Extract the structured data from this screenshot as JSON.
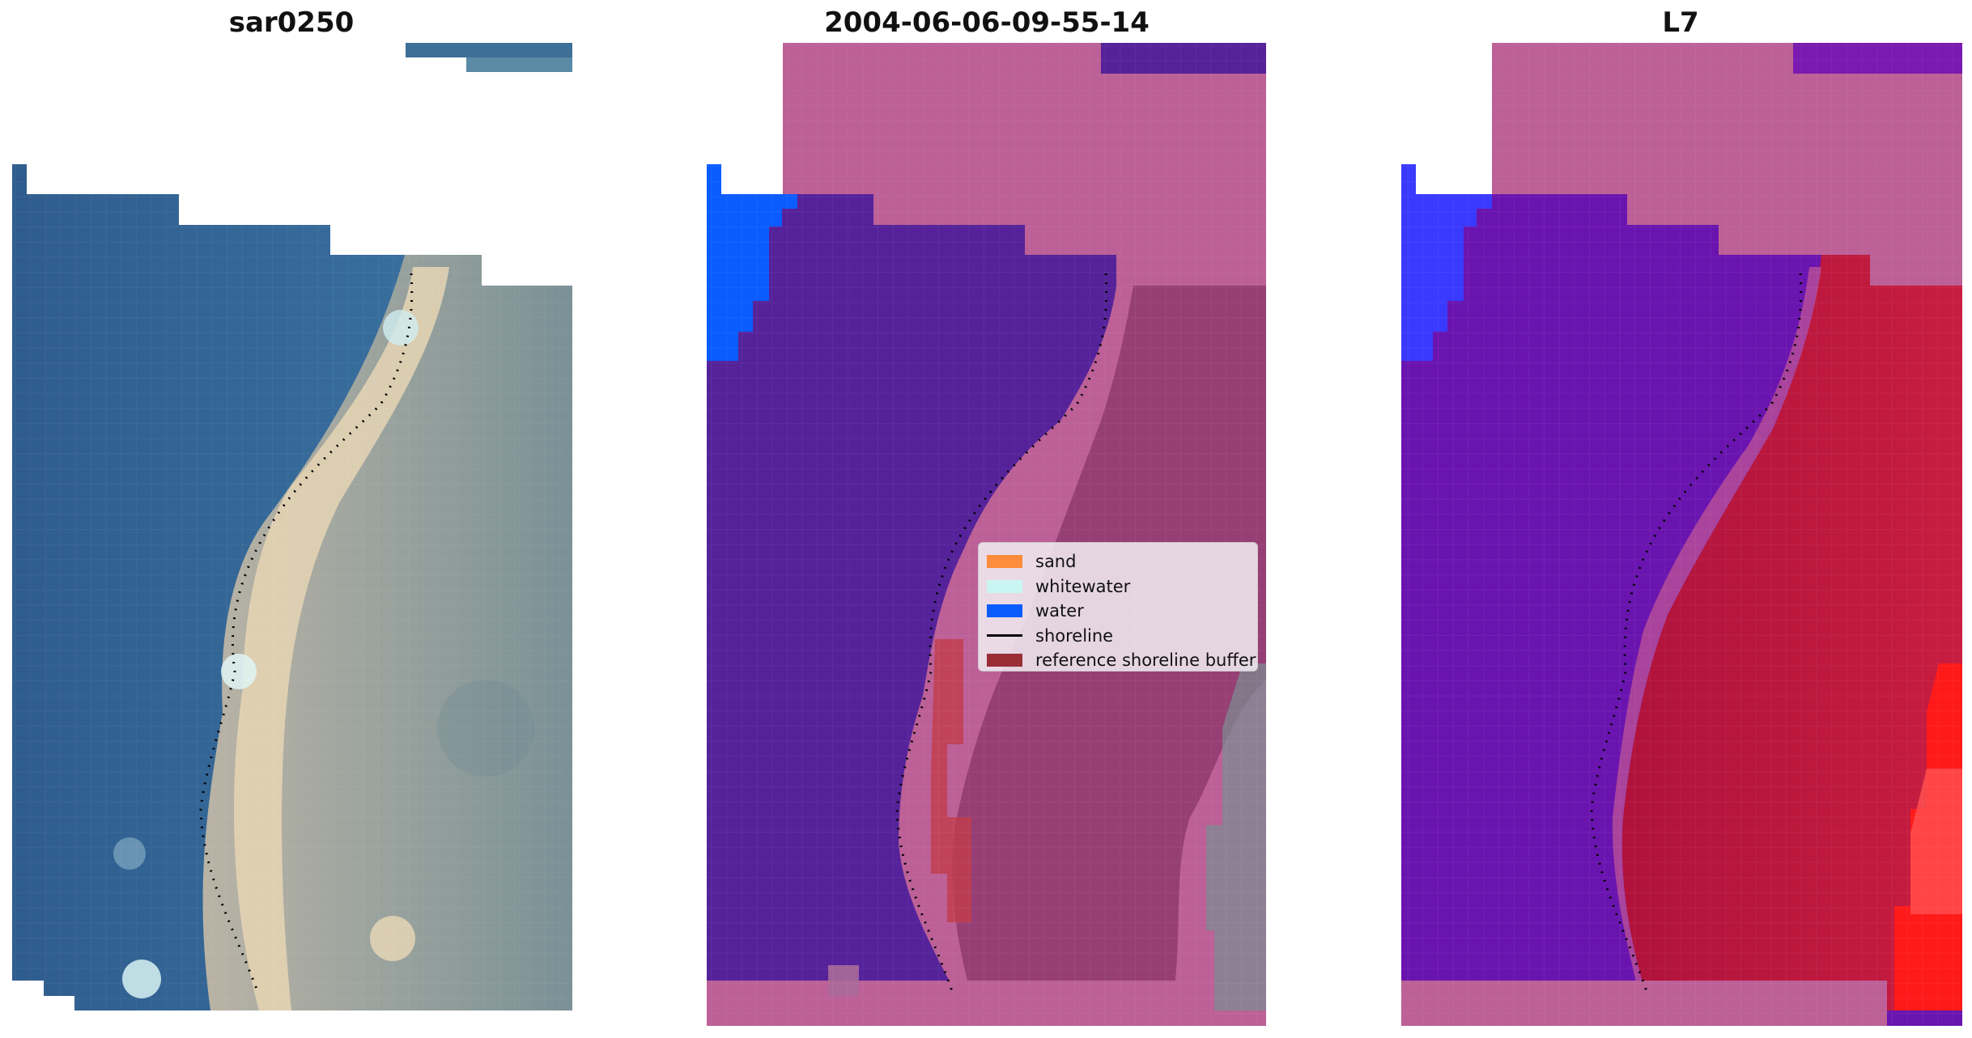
{
  "panels": [
    {
      "title": "sar0250"
    },
    {
      "title": "2004-06-06-09-55-14"
    },
    {
      "title": "L7"
    }
  ],
  "legend": {
    "items": [
      {
        "label": "sand",
        "color": "#ff8c3a",
        "kind": "patch"
      },
      {
        "label": "whitewater",
        "color": "#c9f5f3",
        "kind": "patch"
      },
      {
        "label": "water",
        "color": "#0b5cff",
        "kind": "patch"
      },
      {
        "label": "shoreline",
        "color": "#000000",
        "kind": "line"
      },
      {
        "label": "reference shoreline buffer",
        "color": "#9a2e36",
        "kind": "patch"
      }
    ]
  },
  "colors": {
    "water_rgb": "#3a6a96",
    "beach_rgb": "#e8d8b8",
    "land_rgb": "#7f9298",
    "class_water": "#55229a",
    "class_land": "#bc6097",
    "class_land_dark": "#8a3468",
    "ndwi_low": "#6a14b0",
    "ndwi_high": "#c8143c",
    "ndwi_extreme": "#ff1a1a",
    "blue_region": "#0b5cff"
  }
}
